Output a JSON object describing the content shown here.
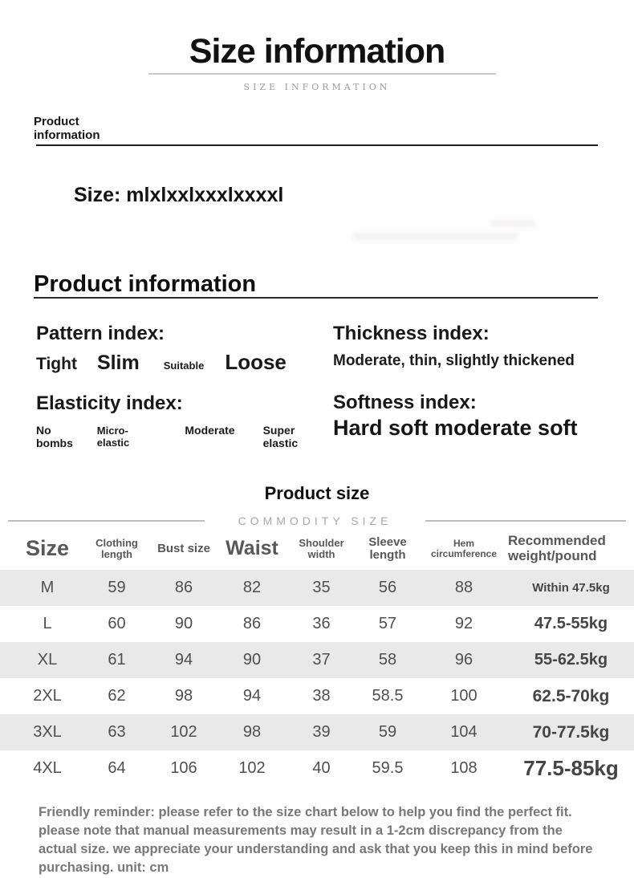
{
  "banner": {
    "title": "Size information",
    "subtitle": "SIZE INFORMATION"
  },
  "product_info_small_label": "Product information",
  "size_line": "Size: mlxlxxlxxxlxxxxl",
  "section_heading": "Product information",
  "indices": {
    "pattern": {
      "label": "Pattern index:",
      "options": [
        "Tight",
        "Slim",
        "Suitable",
        "Loose"
      ]
    },
    "thickness": {
      "label": "Thickness index:",
      "value": "Moderate, thin, slightly thickened"
    },
    "elasticity": {
      "label": "Elasticity index:",
      "options": [
        "No bombs",
        "Micro-elastic",
        "Moderate",
        "Super elastic"
      ]
    },
    "softness": {
      "label": "Softness index:",
      "value": "Hard soft moderate soft"
    }
  },
  "size_table": {
    "title": "Product size",
    "subtitle": "COMMODITY SIZE",
    "columns": [
      "Size",
      "Clothing length",
      "Bust size",
      "Waist",
      "Shoulder width",
      "Sleeve length",
      "Hem circumference",
      "Recommended weight/pound"
    ],
    "rows": [
      [
        "M",
        "59",
        "86",
        "82",
        "35",
        "56",
        "88",
        "Within 47.5kg"
      ],
      [
        "L",
        "60",
        "90",
        "86",
        "36",
        "57",
        "92",
        "47.5-55kg"
      ],
      [
        "XL",
        "61",
        "94",
        "90",
        "37",
        "58",
        "96",
        "55-62.5kg"
      ],
      [
        "2XL",
        "62",
        "98",
        "94",
        "38",
        "58.5",
        "100",
        "62.5-70kg"
      ],
      [
        "3XL",
        "63",
        "102",
        "98",
        "39",
        "59",
        "104",
        "70-77.5kg"
      ],
      [
        "4XL",
        "64",
        "106",
        "102",
        "40",
        "59.5",
        "108",
        "77.5-85kg"
      ]
    ],
    "stripe_color": "#e9e9e9"
  },
  "reminder": "Friendly reminder: please refer to the size chart below to help you find the perfect fit. please note that manual measurements may result in a 1-2cm discrepancy from the actual size. we appreciate your understanding and ask that you keep this in mind before purchasing. unit: cm"
}
